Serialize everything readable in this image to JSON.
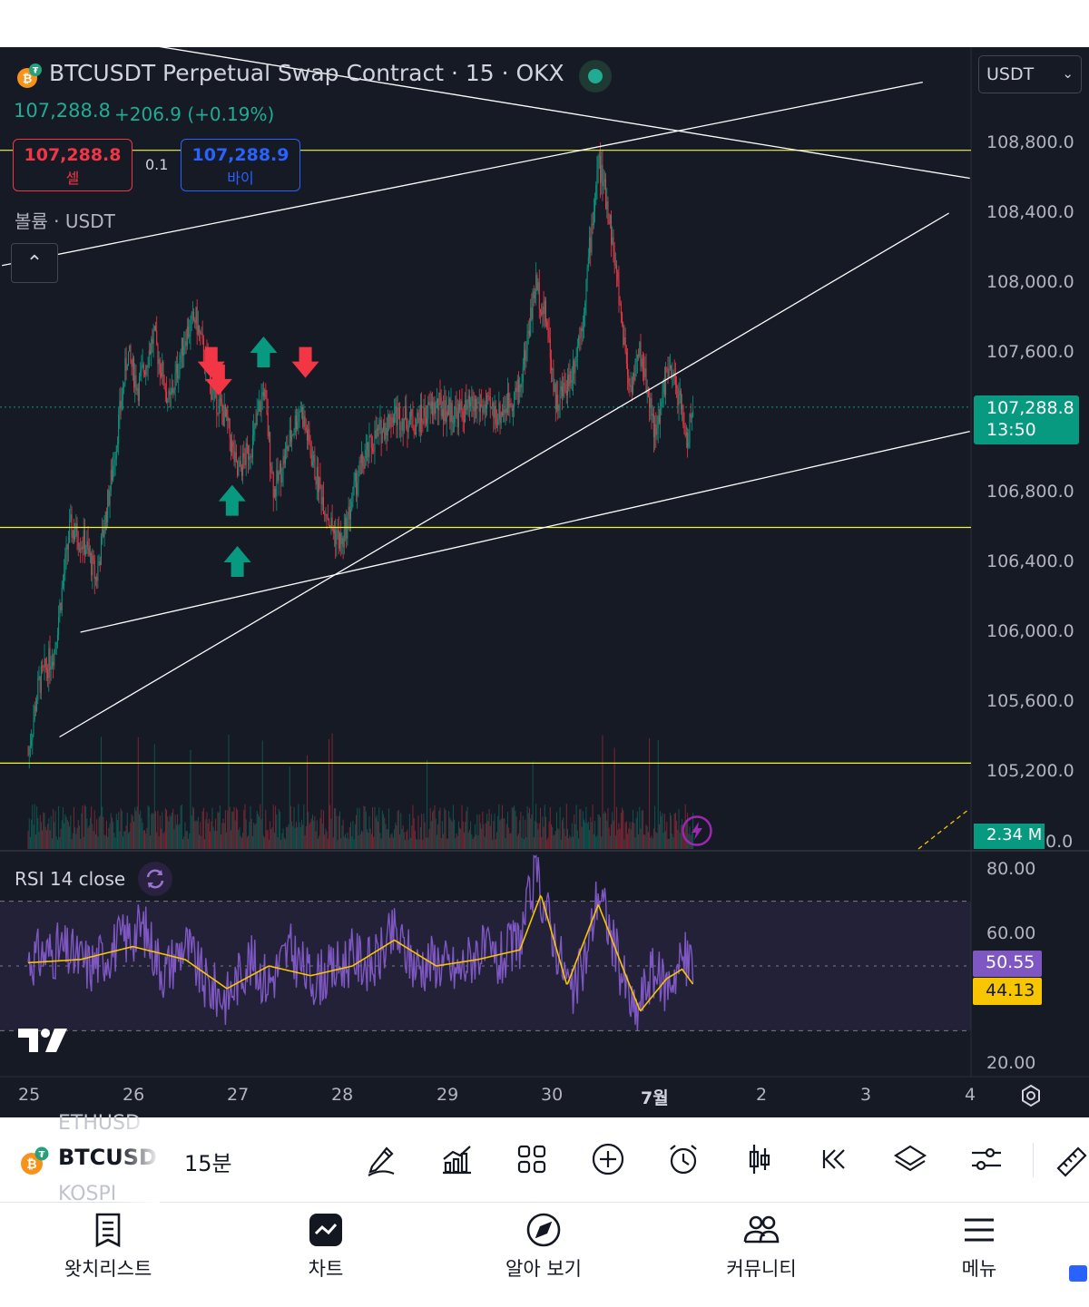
{
  "header": {
    "title": "BTCUSDT Perpetual Swap Contract · 15 · OKX",
    "last_price": "107,288.8",
    "change": "+206.9 (+0.19%)",
    "currency": "USDT",
    "sell_price": "107,288.8",
    "sell_label": "셀",
    "buy_price": "107,288.9",
    "buy_label": "바이",
    "spread": "0.1",
    "volume_label": "볼륨 · USDT"
  },
  "price_axis": {
    "ticks": [
      "108,800.0",
      "108,400.0",
      "108,000.0",
      "107,600.0",
      "107,288.8",
      "106,800.0",
      "106,400.0",
      "106,000.0",
      "105,600.0",
      "105,200.0"
    ],
    "current_price": "107,288.8",
    "countdown": "13:50",
    "volume_value": "2.34 M",
    "volume_zero": "0.0"
  },
  "rsi": {
    "label": "RSI 14 close",
    "ticks": [
      "80.00",
      "60.00",
      "20.00"
    ],
    "rsi_value": "50.55",
    "ma_value": "44.13"
  },
  "time_axis": {
    "labels": [
      "25",
      "26",
      "27",
      "28",
      "29",
      "30",
      "7월",
      "2",
      "3",
      "4"
    ]
  },
  "toolbar": {
    "symbol": "BTCUSD",
    "ghost_above": "ETHUSD",
    "ghost_below": "KOSPI",
    "interval": "15분",
    "icons": [
      "draw-icon",
      "indicators-icon",
      "layout-icon",
      "add-icon",
      "alert-icon",
      "candle-type-icon",
      "replay-icon",
      "layers-icon",
      "settings-sliders-icon",
      "ruler-icon"
    ]
  },
  "nav": {
    "items": [
      {
        "label": "왓치리스트",
        "icon": "watchlist-icon"
      },
      {
        "label": "차트",
        "icon": "chart-icon"
      },
      {
        "label": "알아 보기",
        "icon": "compass-icon"
      },
      {
        "label": "커뮤니티",
        "icon": "community-icon"
      },
      {
        "label": "메뉴",
        "icon": "menu-icon"
      }
    ]
  },
  "colors": {
    "background": "#161a25",
    "up": "#089981",
    "down": "#f23645",
    "rsi_line": "#7e57c2",
    "rsi_ma": "#f7c600",
    "hline": "#f7f722",
    "trendline": "#ffffff"
  },
  "chart_data": {
    "type": "candlestick",
    "symbol": "BTCUSDT",
    "interval": "15",
    "ylim": [
      104900,
      109000
    ],
    "horizontal_lines": [
      108760,
      106600,
      105250
    ],
    "close_path": [
      {
        "day": 25.0,
        "price": 105300
      },
      {
        "day": 25.1,
        "price": 105700
      },
      {
        "day": 25.25,
        "price": 105900
      },
      {
        "day": 25.4,
        "price": 106600
      },
      {
        "day": 25.55,
        "price": 106500
      },
      {
        "day": 25.65,
        "price": 106300
      },
      {
        "day": 25.8,
        "price": 106900
      },
      {
        "day": 25.95,
        "price": 107600
      },
      {
        "day": 26.05,
        "price": 107400
      },
      {
        "day": 26.2,
        "price": 107700
      },
      {
        "day": 26.35,
        "price": 107300
      },
      {
        "day": 26.5,
        "price": 107700
      },
      {
        "day": 26.6,
        "price": 107800
      },
      {
        "day": 26.75,
        "price": 107400
      },
      {
        "day": 26.9,
        "price": 107200
      },
      {
        "day": 27.0,
        "price": 106900
      },
      {
        "day": 27.15,
        "price": 107100
      },
      {
        "day": 27.25,
        "price": 107400
      },
      {
        "day": 27.35,
        "price": 106800
      },
      {
        "day": 27.5,
        "price": 107100
      },
      {
        "day": 27.6,
        "price": 107300
      },
      {
        "day": 27.75,
        "price": 106900
      },
      {
        "day": 27.9,
        "price": 106600
      },
      {
        "day": 28.0,
        "price": 106500
      },
      {
        "day": 28.15,
        "price": 106900
      },
      {
        "day": 28.3,
        "price": 107100
      },
      {
        "day": 28.5,
        "price": 107250
      },
      {
        "day": 28.7,
        "price": 107200
      },
      {
        "day": 28.9,
        "price": 107300
      },
      {
        "day": 29.1,
        "price": 107250
      },
      {
        "day": 29.3,
        "price": 107300
      },
      {
        "day": 29.5,
        "price": 107250
      },
      {
        "day": 29.7,
        "price": 107400
      },
      {
        "day": 29.85,
        "price": 108000
      },
      {
        "day": 29.95,
        "price": 107800
      },
      {
        "day": 30.05,
        "price": 107300
      },
      {
        "day": 30.2,
        "price": 107500
      },
      {
        "day": 30.3,
        "price": 107800
      },
      {
        "day": 30.45,
        "price": 108700
      },
      {
        "day": 30.55,
        "price": 108400
      },
      {
        "day": 30.65,
        "price": 107900
      },
      {
        "day": 30.75,
        "price": 107400
      },
      {
        "day": 30.85,
        "price": 107600
      },
      {
        "day": 30.95,
        "price": 107300
      },
      {
        "day": 31.0,
        "price": 107100
      },
      {
        "day": 31.1,
        "price": 107500
      },
      {
        "day": 31.2,
        "price": 107400
      },
      {
        "day": 31.3,
        "price": 107100
      },
      {
        "day": 31.36,
        "price": 107288.8
      }
    ],
    "buy_signals": [
      {
        "day": 27.25,
        "price": 107600
      },
      {
        "day": 26.95,
        "price": 106750
      },
      {
        "day": 27.0,
        "price": 106400
      }
    ],
    "sell_signals": [
      {
        "day": 26.75,
        "price": 107550
      },
      {
        "day": 26.82,
        "price": 107450
      },
      {
        "day": 27.65,
        "price": 107550
      }
    ],
    "trendlines": [
      {
        "from": {
          "day": 24.75,
          "price": 108100
        },
        "to": {
          "day": 33.55,
          "price": 109150
        }
      },
      {
        "from": {
          "day": 24.75,
          "price": 109500
        },
        "to": {
          "day": 34.0,
          "price": 108600
        }
      },
      {
        "from": {
          "day": 25.3,
          "price": 105400
        },
        "to": {
          "day": 33.8,
          "price": 108400
        }
      },
      {
        "from": {
          "day": 25.5,
          "price": 106000
        },
        "to": {
          "day": 34.0,
          "price": 107150
        }
      }
    ],
    "rsi": {
      "ylim": [
        15,
        85
      ],
      "overbought": 70,
      "oversold": 30,
      "values": [
        {
          "day": 25.0,
          "rsi": 52
        },
        {
          "day": 25.3,
          "rsi": 55
        },
        {
          "day": 25.6,
          "rsi": 50
        },
        {
          "day": 25.9,
          "rsi": 58
        },
        {
          "day": 26.1,
          "rsi": 62
        },
        {
          "day": 26.3,
          "rsi": 48
        },
        {
          "day": 26.5,
          "rsi": 57
        },
        {
          "day": 26.7,
          "rsi": 44
        },
        {
          "day": 26.9,
          "rsi": 40
        },
        {
          "day": 27.1,
          "rsi": 52
        },
        {
          "day": 27.3,
          "rsi": 45
        },
        {
          "day": 27.5,
          "rsi": 55
        },
        {
          "day": 27.7,
          "rsi": 46
        },
        {
          "day": 27.9,
          "rsi": 48
        },
        {
          "day": 28.1,
          "rsi": 53
        },
        {
          "day": 28.3,
          "rsi": 50
        },
        {
          "day": 28.5,
          "rsi": 60
        },
        {
          "day": 28.7,
          "rsi": 50
        },
        {
          "day": 28.9,
          "rsi": 52
        },
        {
          "day": 29.1,
          "rsi": 48
        },
        {
          "day": 29.3,
          "rsi": 55
        },
        {
          "day": 29.5,
          "rsi": 51
        },
        {
          "day": 29.7,
          "rsi": 58
        },
        {
          "day": 29.85,
          "rsi": 78
        },
        {
          "day": 30.0,
          "rsi": 62
        },
        {
          "day": 30.2,
          "rsi": 40
        },
        {
          "day": 30.35,
          "rsi": 55
        },
        {
          "day": 30.45,
          "rsi": 74
        },
        {
          "day": 30.6,
          "rsi": 56
        },
        {
          "day": 30.8,
          "rsi": 34
        },
        {
          "day": 30.95,
          "rsi": 48
        },
        {
          "day": 31.1,
          "rsi": 44
        },
        {
          "day": 31.25,
          "rsi": 52
        },
        {
          "day": 31.36,
          "rsi": 50.55
        }
      ],
      "ma_values": [
        {
          "day": 25.0,
          "rsi": 51
        },
        {
          "day": 25.5,
          "rsi": 52
        },
        {
          "day": 26.0,
          "rsi": 56
        },
        {
          "day": 26.5,
          "rsi": 52
        },
        {
          "day": 26.9,
          "rsi": 43
        },
        {
          "day": 27.3,
          "rsi": 50
        },
        {
          "day": 27.7,
          "rsi": 47
        },
        {
          "day": 28.1,
          "rsi": 50
        },
        {
          "day": 28.5,
          "rsi": 58
        },
        {
          "day": 28.9,
          "rsi": 50
        },
        {
          "day": 29.3,
          "rsi": 52
        },
        {
          "day": 29.7,
          "rsi": 55
        },
        {
          "day": 29.9,
          "rsi": 72
        },
        {
          "day": 30.15,
          "rsi": 44
        },
        {
          "day": 30.45,
          "rsi": 69
        },
        {
          "day": 30.7,
          "rsi": 48
        },
        {
          "day": 30.85,
          "rsi": 36
        },
        {
          "day": 31.1,
          "rsi": 46
        },
        {
          "day": 31.25,
          "rsi": 49
        },
        {
          "day": 31.36,
          "rsi": 44.13
        }
      ]
    }
  }
}
